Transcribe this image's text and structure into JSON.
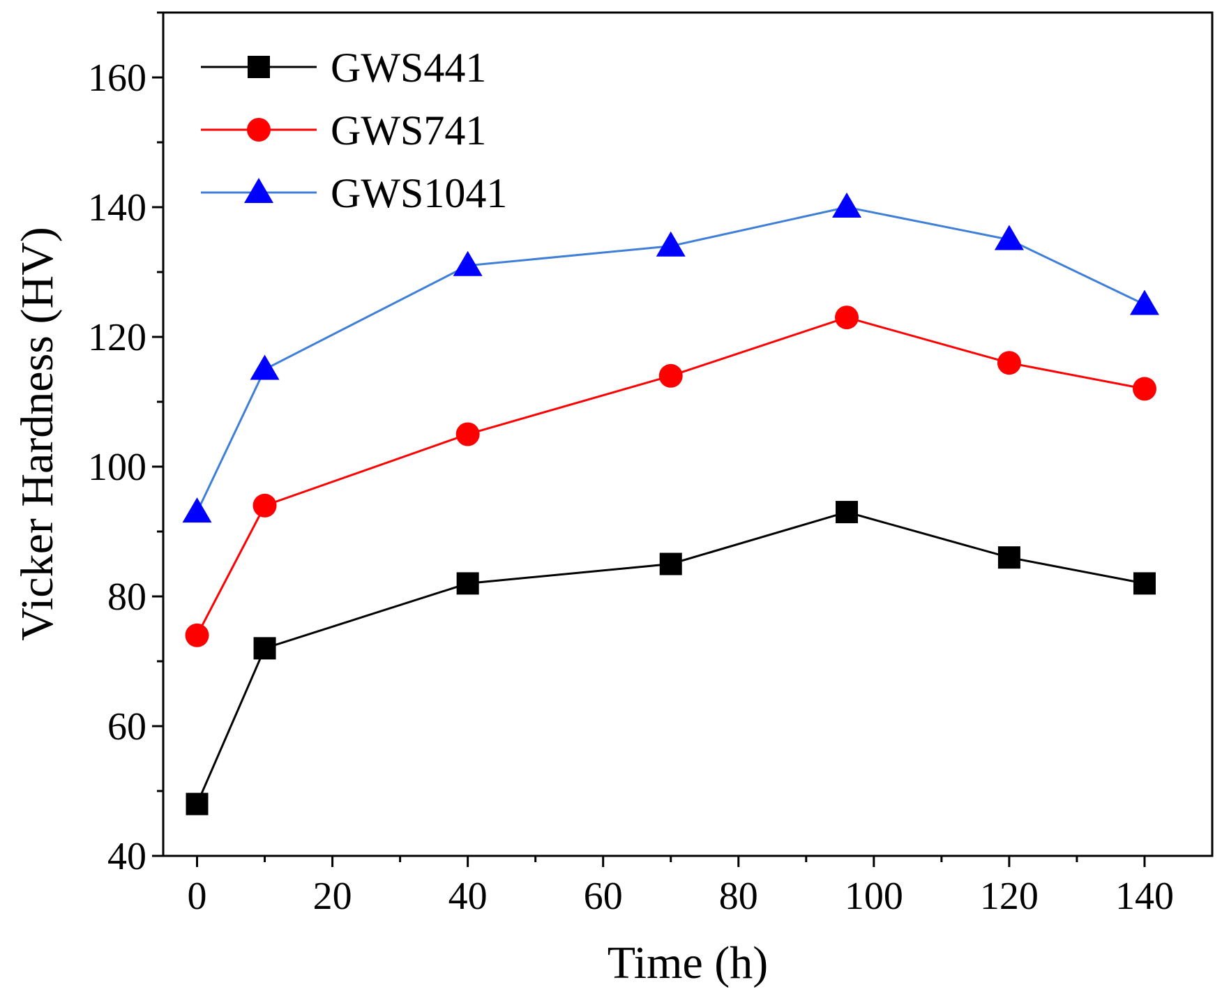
{
  "chart_data": {
    "type": "line",
    "title": "",
    "xlabel": "Time (h)",
    "ylabel": "Vicker Hardness (HV)",
    "x": [
      0,
      10,
      40,
      70,
      96,
      120,
      140
    ],
    "xlim": [
      -5,
      150
    ],
    "ylim": [
      40,
      170
    ],
    "xticks": [
      0,
      20,
      40,
      60,
      80,
      100,
      120,
      140
    ],
    "yticks": [
      40,
      60,
      80,
      100,
      120,
      140,
      160
    ],
    "xtick_labels": [
      "0",
      "20",
      "40",
      "60",
      "80",
      "100",
      "120",
      "140"
    ],
    "ytick_labels": [
      "40",
      "60",
      "80",
      "100",
      "120",
      "140",
      "160"
    ],
    "grid": false,
    "legend_position": "top-left",
    "series": [
      {
        "name": "GWS441",
        "color": "#000000",
        "marker": "square",
        "values": [
          48,
          72,
          82,
          85,
          93,
          86,
          82
        ]
      },
      {
        "name": "GWS741",
        "color": "#ff0000",
        "marker": "circle",
        "values": [
          74,
          94,
          105,
          114,
          123,
          116,
          112
        ]
      },
      {
        "name": "GWS1041",
        "color": "#0000ff",
        "line_color": "#3f7fd8",
        "marker": "triangle",
        "values": [
          93,
          115,
          131,
          134,
          140,
          135,
          125
        ]
      }
    ]
  }
}
